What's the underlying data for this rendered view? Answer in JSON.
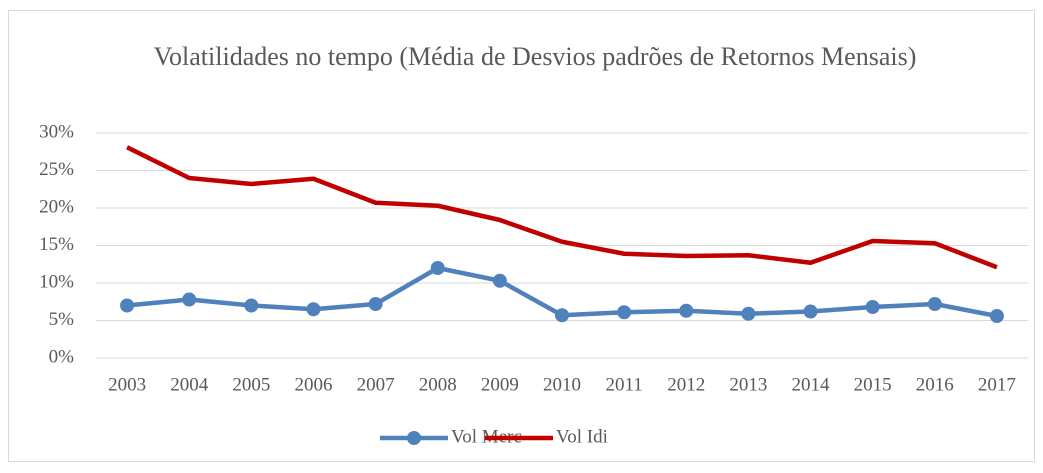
{
  "chart_data": {
    "type": "line",
    "title": "Volatilidades no tempo (Média de Desvios padrões de Retornos Mensais)",
    "categories": [
      "2003",
      "2004",
      "2005",
      "2006",
      "2007",
      "2008",
      "2009",
      "2010",
      "2011",
      "2012",
      "2013",
      "2014",
      "2015",
      "2016",
      "2017"
    ],
    "series": [
      {
        "name": "Vol Merc",
        "color": "#4f81bd",
        "marker": true,
        "values": [
          7.0,
          7.8,
          7.0,
          6.5,
          7.2,
          12.0,
          10.3,
          5.7,
          6.1,
          6.3,
          5.9,
          6.2,
          6.8,
          7.2,
          5.6
        ]
      },
      {
        "name": "Vol Idi",
        "color": "#c00000",
        "marker": false,
        "values": [
          28.1,
          24.0,
          23.2,
          23.9,
          20.7,
          20.3,
          18.4,
          15.5,
          13.9,
          13.6,
          13.7,
          12.7,
          15.6,
          15.3,
          12.1
        ]
      }
    ],
    "ylim": [
      0,
      30
    ],
    "yticks": [
      {
        "value": 0,
        "label": "0%"
      },
      {
        "value": 5,
        "label": "5%"
      },
      {
        "value": 10,
        "label": "10%"
      },
      {
        "value": 15,
        "label": "15%"
      },
      {
        "value": 20,
        "label": "20%"
      },
      {
        "value": 25,
        "label": "25%"
      },
      {
        "value": 30,
        "label": "30%"
      }
    ],
    "grid": true,
    "legend": "bottom"
  }
}
